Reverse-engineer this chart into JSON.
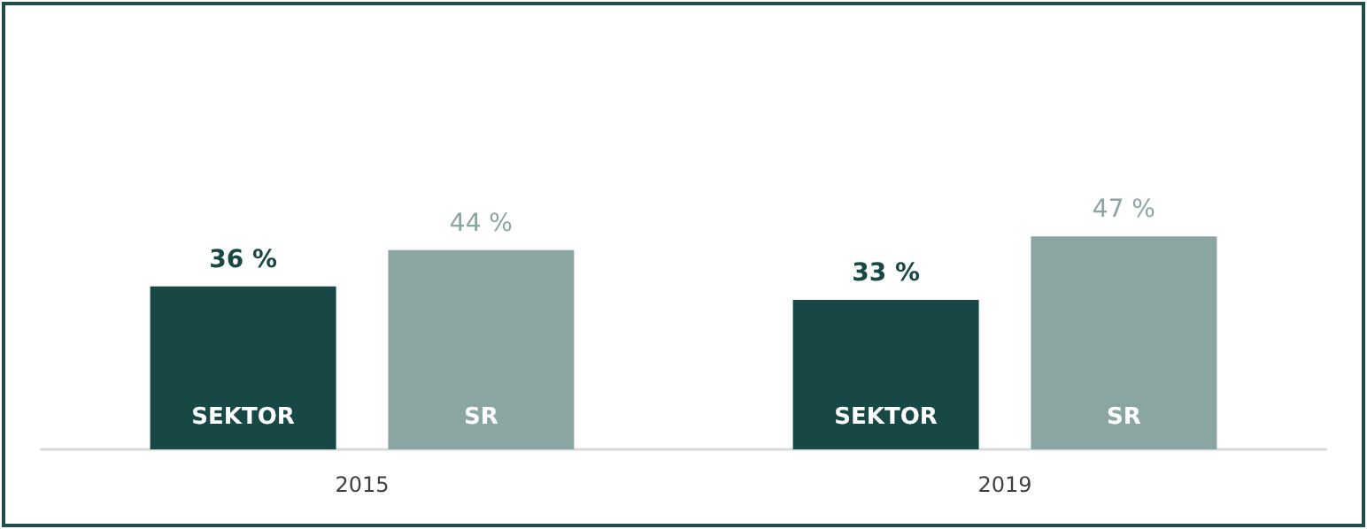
{
  "chart_data": {
    "type": "bar",
    "categories": [
      "2015",
      "2019"
    ],
    "series": [
      {
        "name": "SEKTOR",
        "color": "#174845",
        "values": [
          36,
          33
        ],
        "value_labels": [
          "36 %",
          "33 %"
        ]
      },
      {
        "name": "SR",
        "color": "#8aa5a2",
        "values": [
          44,
          47
        ],
        "value_labels": [
          "44 %",
          "47 %"
        ]
      }
    ],
    "legend": false,
    "grid": false
  }
}
